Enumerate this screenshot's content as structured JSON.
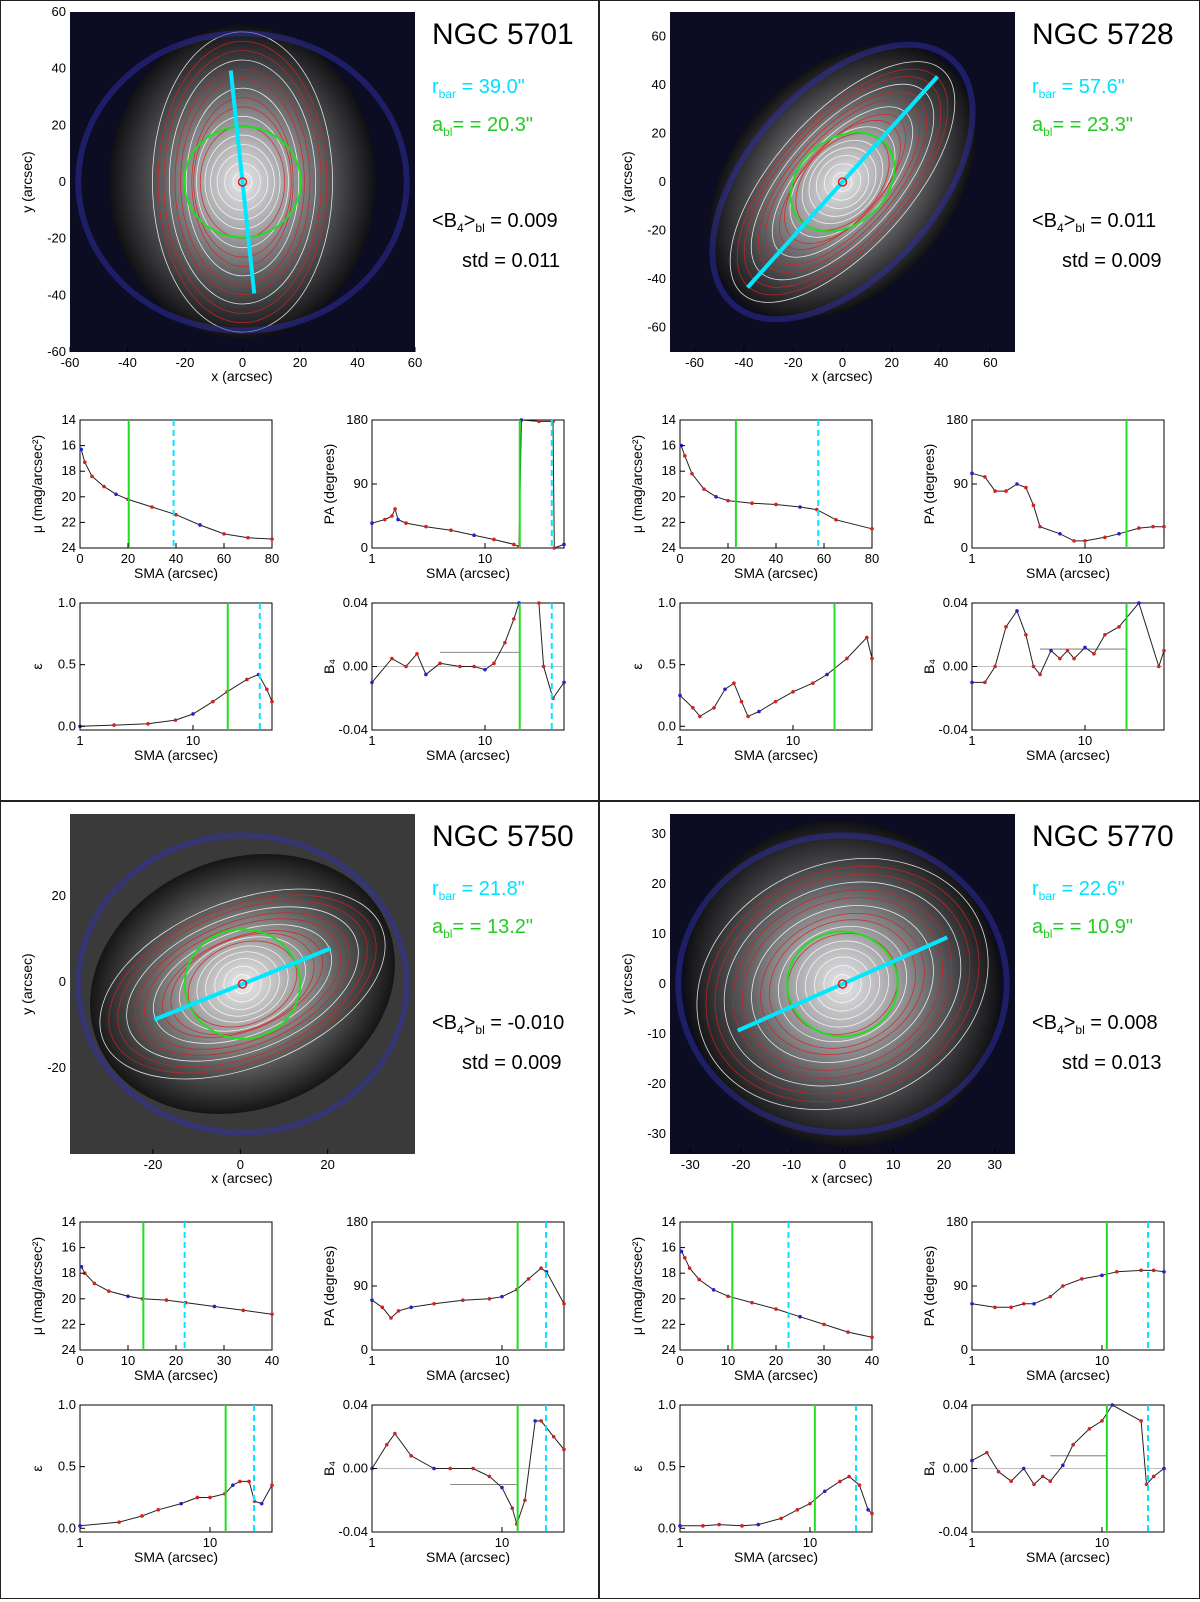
{
  "panels": [
    {
      "name": "NGC 5701",
      "r_bar_label": "r",
      "r_bar_sub": "bar",
      "r_bar_value": " = 39.0\"",
      "a_bl_label": "a",
      "a_bl_sub": "bl",
      "a_bl_value": "= = 20.3\"",
      "b4_label": "<B",
      "b4_sub": "4",
      "b4_mid": ">",
      "b4_sub2": "bl",
      "b4_value": " =  0.009",
      "std_text": "std =  0.011",
      "r_bar": 39.0,
      "a_bl": 20.3,
      "image": {
        "xlim": [
          -60,
          60
        ],
        "ylim": [
          -60,
          60
        ],
        "xticks": [
          "-60",
          "-40",
          "-20",
          "0",
          "20",
          "40",
          "60"
        ],
        "yticks": [
          "60",
          "40",
          "20",
          "0",
          "-20",
          "-40",
          "-60"
        ],
        "bar_pa_deg": 84,
        "ellipticity": 0.4,
        "green_ratio": 1.0
      },
      "mu": {
        "xlim": [
          0,
          80
        ],
        "xticks": [
          "0",
          "20",
          "40",
          "60",
          "80"
        ],
        "points": [
          [
            0.5,
            16.3
          ],
          [
            2,
            17.3
          ],
          [
            5,
            18.4
          ],
          [
            10,
            19.2
          ],
          [
            15,
            19.8
          ],
          [
            20,
            20.2
          ],
          [
            30,
            20.8
          ],
          [
            40,
            21.4
          ],
          [
            50,
            22.2
          ],
          [
            60,
            22.9
          ],
          [
            70,
            23.2
          ],
          [
            80,
            23.3
          ]
        ]
      },
      "pa": {
        "xlim_log": [
          1,
          50
        ],
        "points": [
          [
            1,
            35
          ],
          [
            1.3,
            40
          ],
          [
            1.5,
            45
          ],
          [
            1.6,
            55
          ],
          [
            1.7,
            40
          ],
          [
            2,
            35
          ],
          [
            3,
            30
          ],
          [
            5,
            25
          ],
          [
            8,
            18
          ],
          [
            12,
            12
          ],
          [
            18,
            5
          ],
          [
            20,
            2
          ],
          [
            21,
            180
          ],
          [
            30,
            178
          ],
          [
            40,
            178
          ],
          [
            41,
            0
          ],
          [
            50,
            5
          ]
        ]
      },
      "eps": {
        "xlim_log": [
          1,
          50
        ],
        "points": [
          [
            1,
            0.0
          ],
          [
            2,
            0.01
          ],
          [
            4,
            0.02
          ],
          [
            7,
            0.05
          ],
          [
            10,
            0.1
          ],
          [
            15,
            0.2
          ],
          [
            20,
            0.28
          ],
          [
            30,
            0.38
          ],
          [
            38,
            0.42
          ],
          [
            45,
            0.3
          ],
          [
            50,
            0.2
          ]
        ]
      },
      "b4": {
        "xlim_log": [
          1,
          50
        ],
        "mean_line": 0.009,
        "points": [
          [
            1,
            -0.01
          ],
          [
            1.5,
            0.005
          ],
          [
            2,
            0.0
          ],
          [
            2.5,
            0.008
          ],
          [
            3,
            -0.005
          ],
          [
            4,
            0.002
          ],
          [
            6,
            0.0
          ],
          [
            8,
            0.0
          ],
          [
            10,
            -0.002
          ],
          [
            12,
            0.002
          ],
          [
            15,
            0.015
          ],
          [
            18,
            0.03
          ],
          [
            20,
            0.04
          ],
          [
            30,
            0.04
          ],
          [
            33,
            0.0
          ],
          [
            40,
            -0.02
          ],
          [
            50,
            -0.01
          ]
        ]
      }
    },
    {
      "name": "NGC 5728",
      "r_bar_label": "r",
      "r_bar_sub": "bar",
      "r_bar_value": " = 57.6\"",
      "a_bl_label": "a",
      "a_bl_sub": "bl",
      "a_bl_value": "= = 23.3\"",
      "b4_label": "<B",
      "b4_sub": "4",
      "b4_mid": ">",
      "b4_sub2": "bl",
      "b4_value": " =  0.011",
      "std_text": "std =  0.009",
      "r_bar": 57.6,
      "a_bl": 23.3,
      "image": {
        "xlim": [
          -70,
          70
        ],
        "ylim": [
          -70,
          70
        ],
        "xticks": [
          "-60",
          "-40",
          "-20",
          "0",
          "20",
          "40",
          "60"
        ],
        "yticks": [
          "60",
          "40",
          "20",
          "0",
          "-20",
          "-40",
          "-60"
        ],
        "bar_pa_deg": -48,
        "ellipticity": 0.55,
        "green_ratio": 1.0
      },
      "mu": {
        "xlim": [
          0,
          80
        ],
        "xticks": [
          "0",
          "20",
          "40",
          "60",
          "80"
        ],
        "points": [
          [
            0.5,
            16.0
          ],
          [
            2,
            16.8
          ],
          [
            5,
            18.2
          ],
          [
            10,
            19.4
          ],
          [
            15,
            20.0
          ],
          [
            20,
            20.3
          ],
          [
            30,
            20.5
          ],
          [
            40,
            20.6
          ],
          [
            50,
            20.8
          ],
          [
            57,
            21.0
          ],
          [
            65,
            21.8
          ],
          [
            80,
            22.5
          ]
        ]
      },
      "pa": {
        "xlim_log": [
          1,
          50
        ],
        "points": [
          [
            1,
            105
          ],
          [
            1.3,
            100
          ],
          [
            1.6,
            80
          ],
          [
            2,
            80
          ],
          [
            2.5,
            90
          ],
          [
            3,
            85
          ],
          [
            3.5,
            60
          ],
          [
            4,
            30
          ],
          [
            6,
            20
          ],
          [
            8,
            10
          ],
          [
            10,
            10
          ],
          [
            15,
            15
          ],
          [
            20,
            20
          ],
          [
            30,
            28
          ],
          [
            40,
            30
          ],
          [
            50,
            30
          ]
        ]
      },
      "eps": {
        "xlim_log": [
          1,
          50
        ],
        "points": [
          [
            1,
            0.25
          ],
          [
            1.3,
            0.15
          ],
          [
            1.5,
            0.08
          ],
          [
            2,
            0.15
          ],
          [
            2.5,
            0.3
          ],
          [
            3,
            0.35
          ],
          [
            3.5,
            0.2
          ],
          [
            4,
            0.08
          ],
          [
            5,
            0.12
          ],
          [
            7,
            0.2
          ],
          [
            10,
            0.28
          ],
          [
            15,
            0.35
          ],
          [
            20,
            0.42
          ],
          [
            30,
            0.55
          ],
          [
            45,
            0.72
          ],
          [
            50,
            0.55
          ]
        ]
      },
      "b4": {
        "xlim_log": [
          1,
          50
        ],
        "mean_line": 0.011,
        "points": [
          [
            1,
            -0.01
          ],
          [
            1.3,
            -0.01
          ],
          [
            1.6,
            0.0
          ],
          [
            2,
            0.025
          ],
          [
            2.5,
            0.035
          ],
          [
            3,
            0.02
          ],
          [
            3.5,
            0.0
          ],
          [
            4,
            -0.005
          ],
          [
            5,
            0.01
          ],
          [
            6,
            0.005
          ],
          [
            7,
            0.01
          ],
          [
            8,
            0.005
          ],
          [
            10,
            0.012
          ],
          [
            12,
            0.008
          ],
          [
            15,
            0.02
          ],
          [
            20,
            0.025
          ],
          [
            30,
            0.04
          ],
          [
            45,
            0.0
          ],
          [
            50,
            0.01
          ]
        ]
      }
    },
    {
      "name": "NGC 5750",
      "r_bar_label": "r",
      "r_bar_sub": "bar",
      "r_bar_value": " = 21.8\"",
      "a_bl_label": "a",
      "a_bl_sub": "bl",
      "a_bl_value": "= = 13.2\"",
      "b4_label": "<B",
      "b4_sub": "4",
      "b4_mid": ">",
      "b4_sub2": "bl",
      "b4_value": " = -0.010",
      "std_text": "std =  0.009",
      "r_bar": 21.8,
      "a_bl": 13.2,
      "image": {
        "xlim": [
          -39,
          40
        ],
        "ylim": [
          -40,
          39
        ],
        "xticks": [
          "-20",
          "0",
          "20"
        ],
        "yticks": [
          "20",
          "0",
          "-20"
        ],
        "bar_pa_deg": -22,
        "ellipticity": 0.45,
        "green_ratio": 1.0
      },
      "mu": {
        "xlim": [
          0,
          40
        ],
        "xticks": [
          "0",
          "10",
          "20",
          "30",
          "40"
        ],
        "points": [
          [
            0.3,
            17.5
          ],
          [
            1,
            18.0
          ],
          [
            3,
            18.8
          ],
          [
            6,
            19.4
          ],
          [
            10,
            19.8
          ],
          [
            13,
            20.0
          ],
          [
            18,
            20.1
          ],
          [
            22,
            20.3
          ],
          [
            28,
            20.6
          ],
          [
            34,
            20.9
          ],
          [
            40,
            21.2
          ]
        ]
      },
      "pa": {
        "xlim_log": [
          1,
          30
        ],
        "points": [
          [
            1,
            70
          ],
          [
            1.2,
            60
          ],
          [
            1.4,
            45
          ],
          [
            1.6,
            55
          ],
          [
            2,
            60
          ],
          [
            3,
            65
          ],
          [
            5,
            70
          ],
          [
            8,
            72
          ],
          [
            10,
            75
          ],
          [
            13,
            85
          ],
          [
            16,
            100
          ],
          [
            20,
            115
          ],
          [
            22,
            110
          ],
          [
            30,
            65
          ]
        ]
      },
      "eps": {
        "xlim_log": [
          1,
          30
        ],
        "points": [
          [
            1,
            0.02
          ],
          [
            2,
            0.05
          ],
          [
            3,
            0.1
          ],
          [
            4,
            0.15
          ],
          [
            6,
            0.2
          ],
          [
            8,
            0.25
          ],
          [
            10,
            0.25
          ],
          [
            13,
            0.28
          ],
          [
            15,
            0.35
          ],
          [
            17,
            0.38
          ],
          [
            20,
            0.38
          ],
          [
            22,
            0.22
          ],
          [
            25,
            0.2
          ],
          [
            30,
            0.35
          ]
        ]
      },
      "b4": {
        "xlim_log": [
          1,
          30
        ],
        "mean_line": -0.01,
        "points": [
          [
            1,
            0.0
          ],
          [
            1.3,
            0.015
          ],
          [
            1.5,
            0.022
          ],
          [
            2,
            0.008
          ],
          [
            3,
            0.0
          ],
          [
            4,
            0.0
          ],
          [
            6,
            0.0
          ],
          [
            8,
            -0.005
          ],
          [
            10,
            -0.012
          ],
          [
            12,
            -0.025
          ],
          [
            13,
            -0.035
          ],
          [
            15,
            -0.02
          ],
          [
            18,
            0.03
          ],
          [
            20,
            0.03
          ],
          [
            25,
            0.02
          ],
          [
            30,
            0.012
          ]
        ]
      }
    },
    {
      "name": "NGC 5770",
      "r_bar_label": "r",
      "r_bar_sub": "bar",
      "r_bar_value": " = 22.6\"",
      "a_bl_label": "a",
      "a_bl_sub": "bl",
      "a_bl_value": "= = 10.9\"",
      "b4_label": "<B",
      "b4_sub": "4",
      "b4_mid": ">",
      "b4_sub2": "bl",
      "b4_value": " =  0.008",
      "std_text": "std =  0.013",
      "r_bar": 22.6,
      "a_bl": 10.9,
      "image": {
        "xlim": [
          -34,
          34
        ],
        "ylim": [
          -34,
          34
        ],
        "xticks": [
          "-30",
          "-20",
          "-10",
          "0",
          "10",
          "20",
          "30"
        ],
        "yticks": [
          "30",
          "20",
          "10",
          "0",
          "-10",
          "-20",
          "-30"
        ],
        "bar_pa_deg": -24,
        "ellipticity": 0.2,
        "green_ratio": 1.0
      },
      "mu": {
        "xlim": [
          0,
          40
        ],
        "xticks": [
          "0",
          "10",
          "20",
          "30",
          "40"
        ],
        "points": [
          [
            0.3,
            16.3
          ],
          [
            1,
            16.8
          ],
          [
            2,
            17.6
          ],
          [
            4,
            18.5
          ],
          [
            7,
            19.3
          ],
          [
            10,
            19.8
          ],
          [
            15,
            20.3
          ],
          [
            20,
            20.8
          ],
          [
            25,
            21.4
          ],
          [
            30,
            22.0
          ],
          [
            35,
            22.6
          ],
          [
            40,
            23.0
          ]
        ]
      },
      "pa": {
        "xlim_log": [
          1,
          30
        ],
        "points": [
          [
            1,
            65
          ],
          [
            1.5,
            60
          ],
          [
            2,
            60
          ],
          [
            2.5,
            65
          ],
          [
            3,
            65
          ],
          [
            4,
            75
          ],
          [
            5,
            90
          ],
          [
            7,
            100
          ],
          [
            10,
            105
          ],
          [
            13,
            110
          ],
          [
            20,
            112
          ],
          [
            25,
            112
          ],
          [
            30,
            110
          ]
        ]
      },
      "eps": {
        "xlim_log": [
          1,
          30
        ],
        "points": [
          [
            1,
            0.02
          ],
          [
            1.5,
            0.02
          ],
          [
            2,
            0.03
          ],
          [
            3,
            0.02
          ],
          [
            4,
            0.03
          ],
          [
            6,
            0.08
          ],
          [
            8,
            0.15
          ],
          [
            10,
            0.2
          ],
          [
            13,
            0.3
          ],
          [
            17,
            0.38
          ],
          [
            20,
            0.42
          ],
          [
            24,
            0.35
          ],
          [
            28,
            0.15
          ],
          [
            30,
            0.12
          ]
        ]
      },
      "b4": {
        "xlim_log": [
          1,
          30
        ],
        "mean_line": 0.008,
        "points": [
          [
            1,
            0.005
          ],
          [
            1.3,
            0.01
          ],
          [
            1.6,
            -0.002
          ],
          [
            2,
            -0.008
          ],
          [
            2.5,
            0.0
          ],
          [
            3,
            -0.01
          ],
          [
            3.5,
            -0.005
          ],
          [
            4,
            -0.008
          ],
          [
            5,
            0.002
          ],
          [
            6,
            0.015
          ],
          [
            8,
            0.025
          ],
          [
            10,
            0.03
          ],
          [
            12,
            0.04
          ],
          [
            20,
            0.03
          ],
          [
            22,
            -0.01
          ],
          [
            25,
            -0.005
          ],
          [
            30,
            0.0
          ]
        ]
      }
    }
  ],
  "axis_labels": {
    "img_x": "x (arcsec)",
    "img_y": "y (arcsec)",
    "mu_y": "μ (mag/arcsec²)",
    "pa_y": "PA (degrees)",
    "eps_y": "ε",
    "b4_y": "B₄",
    "sma": "SMA (arcsec)"
  },
  "tick_labels": {
    "mu_y": [
      "14",
      "16",
      "18",
      "20",
      "22",
      "24"
    ],
    "pa_y": [
      "180",
      "90",
      "0"
    ],
    "eps_y": [
      "1.0",
      "0.5",
      "0.0"
    ],
    "b4_y": [
      "0.04",
      "0.00",
      "-0.04"
    ],
    "log_x": [
      "1",
      "10"
    ]
  },
  "colors": {
    "bar": "#00e8ff",
    "bulge": "#22dd22",
    "red": "#d62020",
    "blue": "#2222cc"
  }
}
